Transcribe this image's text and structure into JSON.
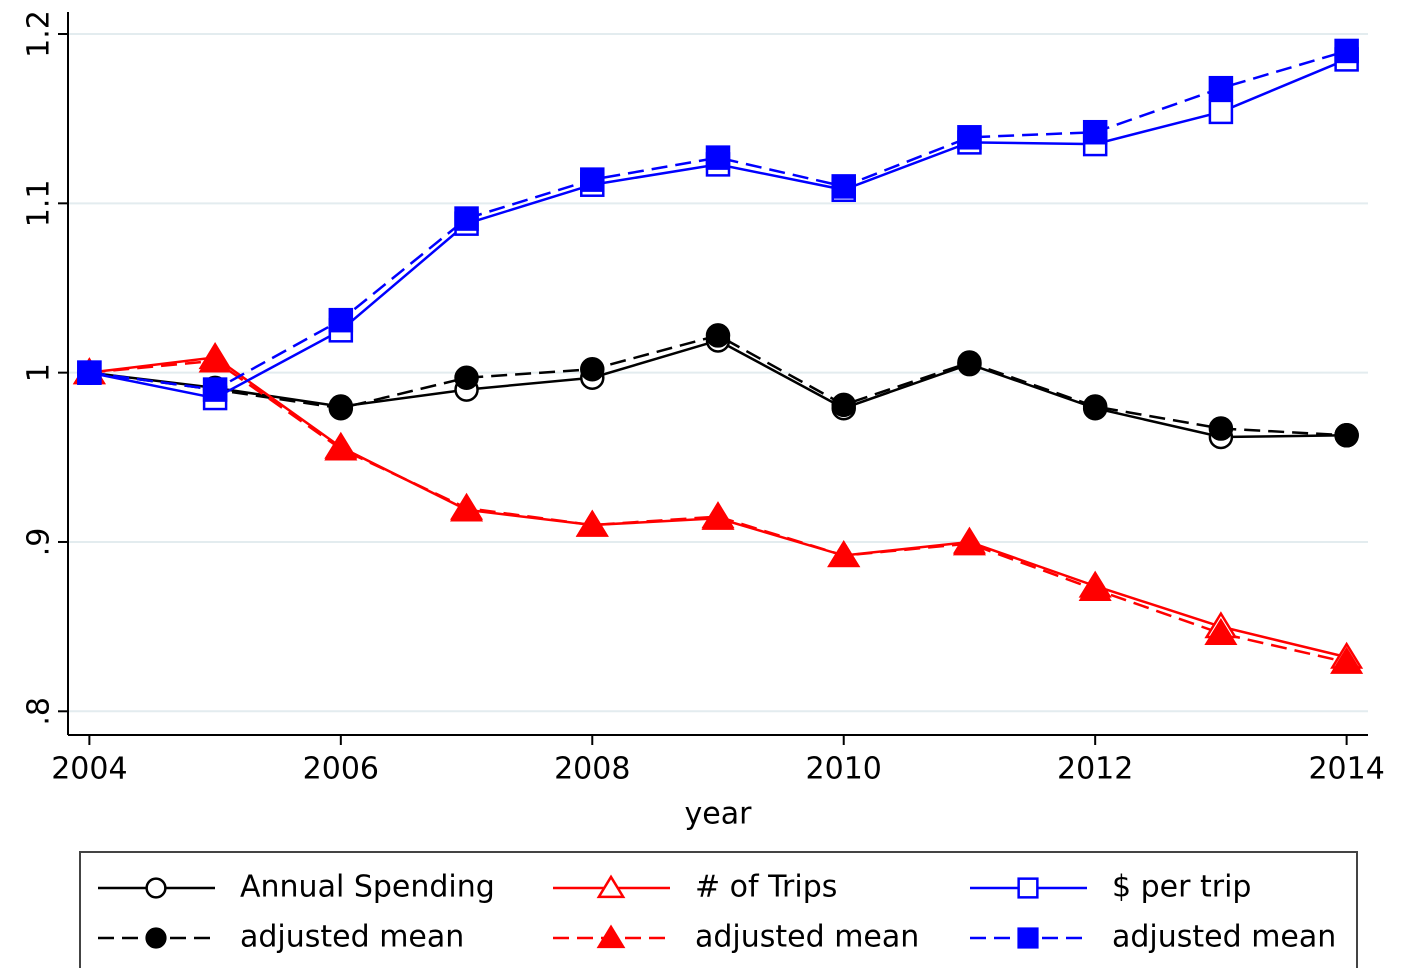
{
  "chart_data": {
    "type": "line",
    "x_label": "year",
    "x": [
      2004,
      2005,
      2006,
      2007,
      2008,
      2009,
      2010,
      2011,
      2012,
      2013,
      2014
    ],
    "xlim": [
      2003.83,
      2014.17
    ],
    "xticks": [
      2004,
      2006,
      2008,
      2010,
      2012,
      2014
    ],
    "ylim": [
      0.786,
      1.213
    ],
    "yticks": [
      {
        "value": 0.8,
        "label": ".8"
      },
      {
        "value": 0.9,
        "label": ".9"
      },
      1,
      1.1,
      1.2
    ],
    "grid": true,
    "legend": "bottom",
    "series": [
      {
        "name": "Annual Spending",
        "color": "#000000",
        "marker": "circle",
        "filled": false,
        "dashed": false,
        "values": [
          1,
          0.991,
          0.98,
          0.99,
          0.997,
          1.019,
          0.979,
          1.005,
          0.979,
          0.962,
          0.963
        ]
      },
      {
        "name": "adjusted mean",
        "color": "#000000",
        "marker": "circle",
        "filled": true,
        "dashed": true,
        "values": [
          1,
          0.99,
          0.979,
          0.997,
          1.002,
          1.022,
          0.981,
          1.006,
          0.98,
          0.967,
          0.963
        ]
      },
      {
        "name": "# of Trips",
        "color": "#ff0000",
        "marker": "triangle",
        "filled": false,
        "dashed": false,
        "values": [
          1,
          1.009,
          0.956,
          0.919,
          0.91,
          0.914,
          0.892,
          0.9,
          0.874,
          0.85,
          0.832
        ]
      },
      {
        "name": "adjusted mean",
        "color": "#ff0000",
        "marker": "triangle",
        "filled": true,
        "dashed": true,
        "values": [
          1,
          1.007,
          0.955,
          0.92,
          0.91,
          0.915,
          0.892,
          0.899,
          0.872,
          0.846,
          0.829
        ]
      },
      {
        "name": "$ per trip",
        "color": "#0000ff",
        "marker": "square",
        "filled": false,
        "dashed": false,
        "values": [
          1,
          0.985,
          1.025,
          1.088,
          1.111,
          1.123,
          1.108,
          1.136,
          1.135,
          1.154,
          1.185
        ]
      },
      {
        "name": "adjusted mean",
        "color": "#0000ff",
        "marker": "square",
        "filled": true,
        "dashed": true,
        "values": [
          1,
          0.99,
          1.031,
          1.091,
          1.114,
          1.127,
          1.11,
          1.139,
          1.142,
          1.168,
          1.19
        ]
      }
    ]
  }
}
